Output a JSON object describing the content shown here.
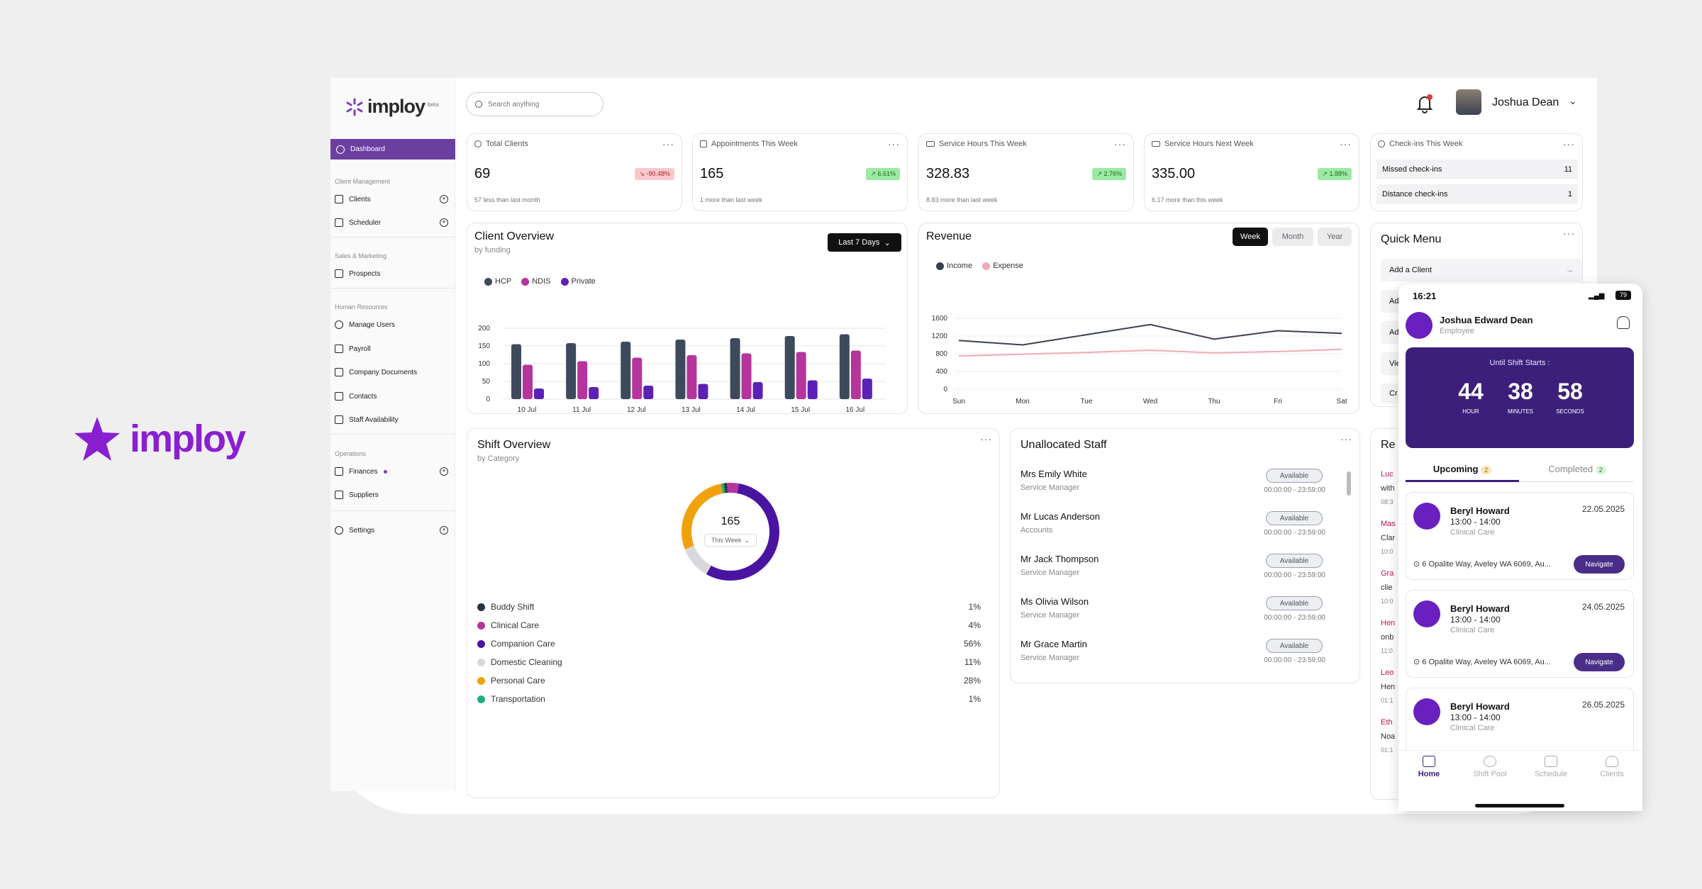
{
  "brand": {
    "name": "imploy"
  },
  "app": {
    "logo": "imploy",
    "logo_tag": "beta"
  },
  "sidebar": {
    "active": "Dashboard",
    "sections": [
      {
        "title": "Client Management",
        "items": [
          "Clients",
          "Scheduler"
        ]
      },
      {
        "title": "Sales & Marketing",
        "items": [
          "Prospects"
        ]
      },
      {
        "title": "Human Resources",
        "items": [
          "Manage Users",
          "Payroll",
          "Company Documents",
          "Contacts",
          "Staff Availability"
        ]
      },
      {
        "title": "Operations",
        "items": [
          "Finances",
          "Suppliers"
        ]
      }
    ],
    "settings": "Settings"
  },
  "search": {
    "placeholder": "Search anything"
  },
  "user": {
    "name": "Joshua Dean"
  },
  "stats": [
    {
      "title": "Total Clients",
      "value": "69",
      "badge": "↘ -90.48%",
      "sub": "57 less than last month"
    },
    {
      "title": "Appointments This Week",
      "value": "165",
      "badge": "↗ 6.61%",
      "sub": "1 more than last week"
    },
    {
      "title": "Service Hours This Week",
      "value": "328.83",
      "badge": "↗ 2.76%",
      "sub": "8.83 more than last week"
    },
    {
      "title": "Service Hours Next Week",
      "value": "335.00",
      "badge": "↗ 1.88%",
      "sub": "6.17 more than this week"
    }
  ],
  "checkins": {
    "title": "Check-ins This Week",
    "rows": [
      {
        "label": "Missed check-ins",
        "value": "11"
      },
      {
        "label": "Distance check-ins",
        "value": "1"
      }
    ]
  },
  "client_overview": {
    "title": "Client Overview",
    "subtitle": "by funding",
    "range": "Last 7 Days"
  },
  "revenue": {
    "title": "Revenue",
    "tabs": [
      "Week",
      "Month",
      "Year"
    ],
    "active_tab": "Week"
  },
  "shift_overview": {
    "title": "Shift Overview",
    "subtitle": "by Category",
    "total": "165",
    "range": "This Week"
  },
  "unallocated": {
    "title": "Unallocated Staff",
    "staff": [
      {
        "name": "Mrs Emily White",
        "role": "Service Manager",
        "status": "Available",
        "time": "00:00:00 - 23:59:00"
      },
      {
        "name": "Mr Lucas Anderson",
        "role": "Accounts",
        "status": "Available",
        "time": "00:00:00 - 23:59:00"
      },
      {
        "name": "Mr Jack Thompson",
        "role": "Service Manager",
        "status": "Available",
        "time": "00:00:00 - 23:59:00"
      },
      {
        "name": "Ms Olivia Wilson",
        "role": "Service Manager",
        "status": "Available",
        "time": "00:00:00 - 23:59:00"
      },
      {
        "name": "Mr Grace Martin",
        "role": "Service Manager",
        "status": "Available",
        "time": "00:00:00 - 23:59:00"
      }
    ]
  },
  "quick_menu": {
    "title": "Quick Menu",
    "first_item": "Add a Client",
    "partial": [
      "Ad",
      "Ad",
      "Vie",
      "Cr"
    ]
  },
  "recent": {
    "partial_title": "Re",
    "partial_lines": [
      "Luc",
      "with",
      "08:3",
      "Mas",
      "Clar",
      "10:0",
      "Gra",
      "clie",
      "10:0",
      "Hen",
      "onb",
      "11:0",
      "Leo",
      "Hen",
      "01:1",
      "Eth",
      "Noa",
      "01:1"
    ]
  },
  "phone": {
    "time": "16:21",
    "battery": "79",
    "name": "Joshua Edward Dean",
    "role": "Employee",
    "countdown": {
      "title": "Until Shift Starts :",
      "hour": "44",
      "hour_label": "HOUR",
      "minutes": "38",
      "minutes_label": "MINUTES",
      "seconds": "58",
      "seconds_label": "SECONDS"
    },
    "tabs": {
      "upcoming": "Upcoming",
      "upcoming_count": "2",
      "completed": "Completed",
      "completed_count": "2"
    },
    "shifts": [
      {
        "name": "Beryl Howard",
        "time": "13:00 - 14:00",
        "category": "Clinical Care",
        "date": "22.05.2025",
        "address": "6 Opalite Way, Aveley WA 6069, Au...",
        "action": "Navigate"
      },
      {
        "name": "Beryl Howard",
        "time": "13:00 - 14:00",
        "category": "Clinical Care",
        "date": "24.05.2025",
        "address": "6 Opalite Way, Aveley WA 6069, Au...",
        "action": "Navigate"
      },
      {
        "name": "Beryl Howard",
        "time": "13:00 - 14:00",
        "category": "Clinical Care",
        "date": "26.05.2025",
        "address": "",
        "action": ""
      }
    ],
    "nav": [
      "Home",
      "Shift Pool",
      "Schedule",
      "Clients"
    ]
  },
  "colors": {
    "primary": "#6b3fa0",
    "hcp": "#3d4a5c",
    "ndis": "#b5359c",
    "private": "#5b21b6",
    "income": "#3a4150",
    "expense": "#f2aab6"
  },
  "chart_data": [
    {
      "type": "bar",
      "title": "Client Overview",
      "subtitle": "by funding",
      "categories": [
        "10 Jul",
        "11 Jul",
        "12 Jul",
        "13 Jul",
        "14 Jul",
        "15 Jul",
        "16 Jul"
      ],
      "series": [
        {
          "name": "HCP",
          "values": [
            155,
            158,
            162,
            168,
            172,
            178,
            183
          ]
        },
        {
          "name": "NDIS",
          "values": [
            97,
            107,
            117,
            124,
            129,
            133,
            137
          ]
        },
        {
          "name": "Private",
          "values": [
            30,
            34,
            38,
            43,
            48,
            53,
            58
          ]
        }
      ],
      "ylim": [
        0,
        200
      ],
      "yticks": [
        "0",
        "50",
        "100",
        "150",
        "200"
      ],
      "legend": "top-left",
      "grid": true
    },
    {
      "type": "line",
      "title": "Revenue",
      "categories": [
        "Sun",
        "Mon",
        "Tue",
        "Wed",
        "Thu",
        "Fri",
        "Sat"
      ],
      "series": [
        {
          "name": "Income",
          "values": [
            1100,
            1000,
            1230,
            1460,
            1130,
            1320,
            1260
          ]
        },
        {
          "name": "Expense",
          "values": [
            750,
            790,
            830,
            880,
            820,
            850,
            900
          ]
        }
      ],
      "ylim": [
        0,
        1600
      ],
      "yticks": [
        "0",
        "400",
        "800",
        "1200",
        "1600"
      ],
      "legend": "top-left",
      "grid": true
    },
    {
      "type": "pie",
      "title": "Shift Overview",
      "subtitle": "by Category",
      "total": "165",
      "slices": [
        {
          "label": "Buddy Shift",
          "value": 1,
          "pct": "1%"
        },
        {
          "label": "Clinical Care",
          "value": 4,
          "pct": "4%"
        },
        {
          "label": "Companion Care",
          "value": 56,
          "pct": "56%"
        },
        {
          "label": "Domestic Cleaning",
          "value": 11,
          "pct": "11%"
        },
        {
          "label": "Personal Care",
          "value": 28,
          "pct": "28%"
        },
        {
          "label": "Transportation",
          "value": 1,
          "pct": "1%"
        }
      ],
      "colors": [
        "#2a3140",
        "#b5359c",
        "#4a14a3",
        "#d8d8dc",
        "#f0a20e",
        "#1fb07a"
      ]
    }
  ]
}
